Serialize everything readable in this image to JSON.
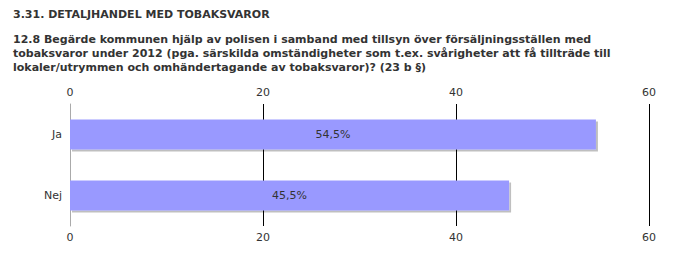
{
  "chart_data": {
    "type": "bar",
    "orientation": "horizontal",
    "title": "3.31. DETALJHANDEL MED TOBAKSVAROR",
    "subtitle": "12.8 Begärde kommunen hjälp av polisen i samband med tillsyn över försäljningsställen med tobaksvaror under 2012 (pga. särskilda omständigheter som t.ex. svårigheter att få tillträde till lokaler/utrymmen och omhändertagande av tobaksvaror)? (23 b §)",
    "categories": [
      "Ja",
      "Nej"
    ],
    "values": [
      54.5,
      45.5
    ],
    "value_labels": [
      "54,5%",
      "45,5%"
    ],
    "color": "#9999ff",
    "xlim": [
      0,
      60
    ],
    "xticks": [
      0,
      20,
      40,
      60
    ],
    "grid": true,
    "data_labels": true
  }
}
